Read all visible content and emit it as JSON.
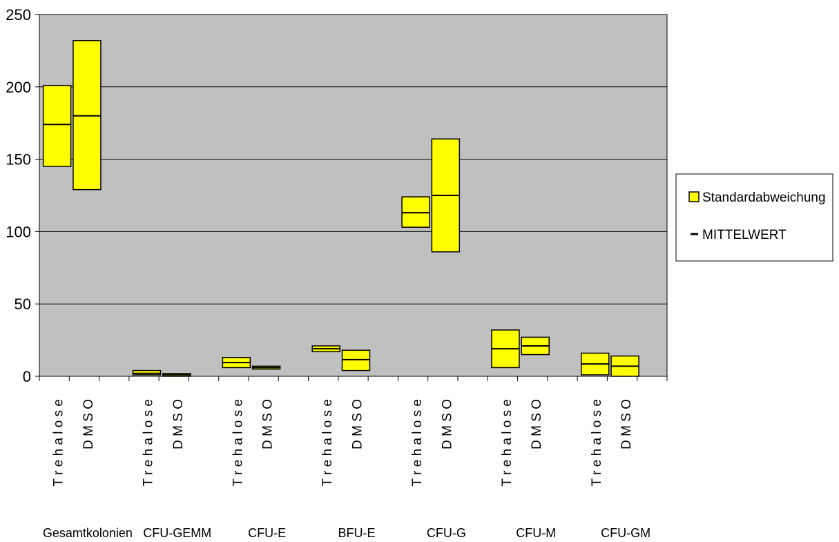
{
  "chart_data": {
    "type": "bar",
    "chart_style": "floating range bars (mean ± standard deviation)",
    "y_ticks": [
      "0",
      "50",
      "100",
      "150",
      "200",
      "250"
    ],
    "ylim": [
      0,
      250
    ],
    "grid": true,
    "legend_position": "right",
    "legend": {
      "range_label": "Standardabweichung",
      "mean_label": "MITTELWERT"
    },
    "groups": [
      {
        "label": "Gesamtkolonien",
        "items": [
          {
            "label": "T r e h a l o s e",
            "low": 145,
            "high": 201,
            "mean": 174
          },
          {
            "label": "D M S O",
            "low": 129,
            "high": 232,
            "mean": 180
          }
        ]
      },
      {
        "label": "CFU-GEMM",
        "items": [
          {
            "label": "T r e h a l o s e",
            "low": 1,
            "high": 4,
            "mean": 2
          },
          {
            "label": "D M S O",
            "low": 0,
            "high": 2,
            "mean": 1
          }
        ]
      },
      {
        "label": "CFU-E",
        "items": [
          {
            "label": "T r e h a l o s e",
            "low": 6,
            "high": 13,
            "mean": 9.5
          },
          {
            "label": "D M S O",
            "low": 5,
            "high": 7,
            "mean": 6
          }
        ]
      },
      {
        "label": "BFU-E",
        "items": [
          {
            "label": "T r e h a l o s e",
            "low": 17,
            "high": 21,
            "mean": 19
          },
          {
            "label": "D M S O",
            "low": 4,
            "high": 18,
            "mean": 11.5
          }
        ]
      },
      {
        "label": "CFU-G",
        "items": [
          {
            "label": "T r e h a l o s e",
            "low": 103,
            "high": 124,
            "mean": 113
          },
          {
            "label": "D M S O",
            "low": 86,
            "high": 164,
            "mean": 125
          }
        ]
      },
      {
        "label": "CFU-M",
        "items": [
          {
            "label": "T r e h a l o s e",
            "low": 6,
            "high": 32,
            "mean": 19
          },
          {
            "label": "D M S O",
            "low": 15,
            "high": 27,
            "mean": 21
          }
        ]
      },
      {
        "label": "CFU-GM",
        "items": [
          {
            "label": "T r e h a l o s e",
            "low": 1,
            "high": 16,
            "mean": 8.5
          },
          {
            "label": "D M S O",
            "low": 0,
            "high": 14,
            "mean": 7
          }
        ]
      }
    ],
    "colors": {
      "plot_background": "#c0c0c0",
      "range_fill": "#ffff00",
      "outline": "#000000",
      "gridline": "#000000"
    }
  }
}
